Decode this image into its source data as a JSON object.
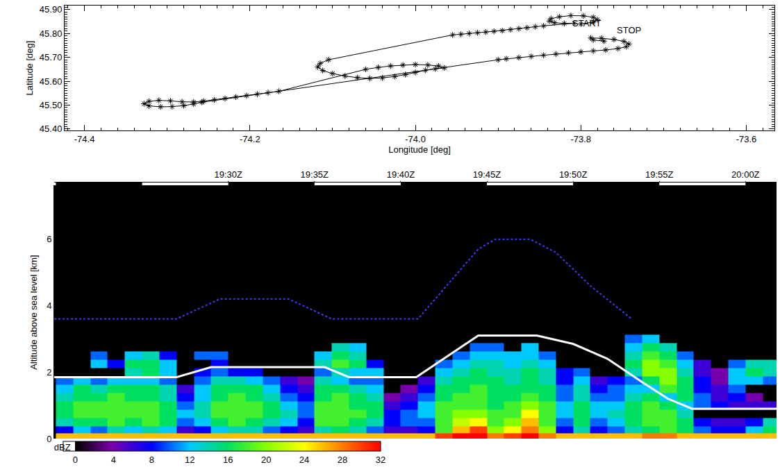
{
  "chart_data": [
    {
      "type": "scatter",
      "x_label": "Longitude [deg]",
      "y_label": "Latitude [deg]",
      "color": "#000000",
      "marker": "asterisk",
      "line_style": "solid",
      "grid": false,
      "xlim": [
        -74.424,
        -73.566
      ],
      "ylim": [
        45.394,
        45.917
      ],
      "xticks": [
        {
          "value": -74.4,
          "label": "-74.4"
        },
        {
          "value": -74.2,
          "label": "-74.2"
        },
        {
          "value": -74.0,
          "label": "-74.0"
        },
        {
          "value": -73.8,
          "label": "-73.8"
        },
        {
          "value": -73.6,
          "label": "-73.6"
        }
      ],
      "yticks": [
        {
          "value": 45.4,
          "label": "45.40"
        },
        {
          "value": 45.5,
          "label": "45.50"
        },
        {
          "value": 45.6,
          "label": "45.60"
        },
        {
          "value": 45.7,
          "label": "45.70"
        },
        {
          "value": 45.8,
          "label": "45.80"
        },
        {
          "value": 45.9,
          "label": "45.90"
        }
      ],
      "x": [
        -73.8,
        -73.785,
        -73.78,
        -73.785,
        -73.797,
        -73.812,
        -73.826,
        -73.836,
        -73.838,
        -73.832,
        -73.82,
        -73.808,
        -73.845,
        -73.855,
        -73.865,
        -73.875,
        -73.885,
        -73.895,
        -73.905,
        -73.915,
        -73.925,
        -73.935,
        -73.945,
        -73.955,
        -74.105,
        -74.115,
        -74.118,
        -74.112,
        -74.1,
        -74.085,
        -74.07,
        -74.055,
        -74.04,
        -74.025,
        -74.012,
        -74.0,
        -73.988,
        -73.976,
        -73.965,
        -73.972,
        -73.985,
        -74.0,
        -74.015,
        -74.03,
        -74.045,
        -74.06,
        -74.165,
        -74.178,
        -74.191,
        -74.204,
        -74.217,
        -74.23,
        -74.243,
        -74.256,
        -74.268,
        -74.282,
        -74.296,
        -74.31,
        -74.322,
        -74.328,
        -74.322,
        -74.308,
        -74.294,
        -74.28,
        -74.268,
        -74.258,
        -73.9,
        -73.89,
        -73.875,
        -73.86,
        -73.845,
        -73.83,
        -73.815,
        -73.8,
        -73.785,
        -73.77,
        -73.755,
        -73.745,
        -73.742,
        -73.748,
        -73.76,
        -73.775,
        -73.788,
        -73.785,
        -73.772
      ],
      "y": [
        45.84,
        45.848,
        45.858,
        45.868,
        45.874,
        45.875,
        45.87,
        45.862,
        45.852,
        45.845,
        45.842,
        45.843,
        45.832,
        45.828,
        45.824,
        45.82,
        45.816,
        45.812,
        45.809,
        45.806,
        45.803,
        45.8,
        45.797,
        45.794,
        45.69,
        45.675,
        45.66,
        45.645,
        45.632,
        45.622,
        45.615,
        45.612,
        45.614,
        45.62,
        45.628,
        45.637,
        45.646,
        45.652,
        45.656,
        45.664,
        45.668,
        45.67,
        45.668,
        45.664,
        45.658,
        45.65,
        45.558,
        45.552,
        45.546,
        45.54,
        45.534,
        45.528,
        45.522,
        45.517,
        45.513,
        45.514,
        45.518,
        45.52,
        45.516,
        45.506,
        45.497,
        45.493,
        45.494,
        45.498,
        45.505,
        45.512,
        45.69,
        45.694,
        45.699,
        45.704,
        45.709,
        45.714,
        45.719,
        45.723,
        45.727,
        45.731,
        45.737,
        45.745,
        45.756,
        45.767,
        45.775,
        45.78,
        45.781,
        45.773,
        45.768
      ],
      "annotations": [
        {
          "text": "START",
          "x": -73.793,
          "y": 45.842
        },
        {
          "text": "STOP",
          "x": -73.742,
          "y": 45.813
        }
      ]
    },
    {
      "type": "heatmap",
      "y_label": "Altitude above sea level [km]",
      "grid": false,
      "xlim": [
        1159.9,
        1201.8
      ],
      "ylim": [
        0,
        7.6
      ],
      "xticks": [
        {
          "value": 1170,
          "label": "19:30Z"
        },
        {
          "value": 1175,
          "label": "19:35Z"
        },
        {
          "value": 1180,
          "label": "19:40Z"
        },
        {
          "value": 1185,
          "label": "19:45Z"
        },
        {
          "value": 1190,
          "label": "19:50Z"
        },
        {
          "value": 1195,
          "label": "19:55Z"
        },
        {
          "value": 1200,
          "label": "20:00Z"
        }
      ],
      "yticks": [
        0,
        2,
        4,
        6
      ],
      "colorbar": {
        "label": "dBZ",
        "range": [
          0,
          32
        ],
        "ticks": [
          0,
          4,
          8,
          12,
          16,
          20,
          24,
          28,
          32
        ]
      },
      "x": [
        1160.5,
        1161.5,
        1162.5,
        1163.5,
        1164.5,
        1165.5,
        1166.5,
        1167.5,
        1168.5,
        1169.5,
        1170.5,
        1171.5,
        1172.5,
        1173.5,
        1174.5,
        1175.5,
        1176.5,
        1177.5,
        1178.5,
        1179.5,
        1180.5,
        1181.5,
        1182.5,
        1183.5,
        1184.5,
        1185.5,
        1186.5,
        1187.5,
        1188.5,
        1189.5,
        1190.5,
        1191.5,
        1192.5,
        1193.5,
        1194.5,
        1195.5,
        1196.5,
        1197.5,
        1198.5,
        1199.5,
        1200.5,
        1201.5
      ],
      "y": [
        0.05,
        0.25,
        0.5,
        0.75,
        1.0,
        1.25,
        1.5,
        1.75,
        2.0,
        2.25,
        2.5,
        2.75,
        3.0
      ],
      "dbz_columns": [
        [
          26,
          8,
          14,
          16,
          16,
          14,
          12,
          10,
          null,
          null,
          null,
          null,
          null
        ],
        [
          26,
          12,
          16,
          18,
          18,
          16,
          16,
          12,
          null,
          null,
          null,
          null,
          null
        ],
        [
          26,
          10,
          16,
          18,
          18,
          16,
          14,
          10,
          null,
          12,
          10,
          null,
          null
        ],
        [
          26,
          14,
          18,
          18,
          18,
          18,
          16,
          12,
          null,
          8,
          null,
          null,
          null
        ],
        [
          26,
          12,
          16,
          18,
          18,
          16,
          16,
          12,
          14,
          16,
          12,
          null,
          null
        ],
        [
          26,
          14,
          18,
          18,
          18,
          16,
          16,
          12,
          16,
          16,
          14,
          null,
          null
        ],
        [
          26,
          12,
          16,
          16,
          16,
          14,
          14,
          10,
          12,
          12,
          8,
          null,
          null
        ],
        [
          26,
          6,
          10,
          12,
          10,
          8,
          6,
          null,
          null,
          null,
          null,
          null,
          null
        ],
        [
          26,
          8,
          12,
          14,
          14,
          12,
          12,
          10,
          8,
          null,
          10,
          null,
          null
        ],
        [
          26,
          12,
          16,
          18,
          18,
          16,
          16,
          14,
          10,
          8,
          10,
          null,
          null
        ],
        [
          26,
          14,
          18,
          18,
          18,
          18,
          16,
          14,
          8,
          null,
          null,
          null,
          null
        ],
        [
          26,
          14,
          16,
          18,
          18,
          16,
          16,
          12,
          8,
          null,
          null,
          null,
          null
        ],
        [
          26,
          10,
          14,
          16,
          16,
          14,
          12,
          10,
          null,
          null,
          null,
          null,
          null
        ],
        [
          26,
          8,
          12,
          14,
          12,
          10,
          8,
          6,
          null,
          null,
          null,
          null,
          null
        ],
        [
          26,
          6,
          8,
          10,
          10,
          8,
          6,
          4,
          null,
          null,
          null,
          null,
          null
        ],
        [
          26,
          14,
          18,
          18,
          18,
          16,
          16,
          14,
          10,
          14,
          12,
          null,
          null
        ],
        [
          26,
          16,
          18,
          18,
          18,
          18,
          16,
          12,
          14,
          18,
          16,
          14,
          null
        ],
        [
          26,
          14,
          16,
          18,
          16,
          16,
          14,
          10,
          12,
          16,
          14,
          12,
          null
        ],
        [
          26,
          10,
          14,
          16,
          16,
          14,
          12,
          10,
          12,
          8,
          null,
          null,
          null
        ],
        [
          26,
          6,
          8,
          8,
          6,
          4,
          null,
          null,
          null,
          null,
          null,
          null,
          null
        ],
        [
          26,
          6,
          10,
          10,
          8,
          6,
          4,
          null,
          null,
          null,
          null,
          null,
          null
        ],
        [
          26,
          8,
          10,
          12,
          12,
          10,
          8,
          6,
          null,
          null,
          null,
          null,
          null
        ],
        [
          30,
          18,
          18,
          18,
          18,
          16,
          16,
          14,
          12,
          10,
          null,
          null,
          null
        ],
        [
          32,
          26,
          22,
          20,
          18,
          18,
          16,
          16,
          14,
          12,
          10,
          null,
          null
        ],
        [
          32,
          30,
          24,
          20,
          18,
          18,
          18,
          16,
          16,
          14,
          12,
          10,
          null
        ],
        [
          28,
          20,
          18,
          18,
          16,
          16,
          16,
          16,
          14,
          14,
          12,
          10,
          null
        ],
        [
          30,
          24,
          20,
          18,
          18,
          16,
          16,
          14,
          14,
          12,
          12,
          null,
          null
        ],
        [
          32,
          28,
          26,
          24,
          20,
          18,
          16,
          16,
          16,
          14,
          12,
          12,
          null
        ],
        [
          28,
          20,
          18,
          18,
          18,
          16,
          16,
          14,
          14,
          12,
          10,
          null,
          null
        ],
        [
          26,
          8,
          10,
          12,
          12,
          10,
          10,
          8,
          8,
          null,
          null,
          null,
          null
        ],
        [
          26,
          14,
          16,
          16,
          16,
          14,
          14,
          12,
          10,
          null,
          null,
          null,
          null
        ],
        [
          26,
          8,
          10,
          12,
          12,
          10,
          8,
          6,
          null,
          null,
          null,
          null,
          null
        ],
        [
          26,
          10,
          12,
          14,
          12,
          10,
          10,
          8,
          null,
          null,
          null,
          null,
          null
        ],
        [
          26,
          14,
          16,
          16,
          16,
          14,
          12,
          10,
          14,
          16,
          14,
          12,
          10
        ],
        [
          28,
          16,
          18,
          18,
          18,
          16,
          12,
          16,
          20,
          20,
          18,
          16,
          12
        ],
        [
          28,
          18,
          18,
          18,
          16,
          12,
          18,
          20,
          20,
          18,
          16,
          14,
          null
        ],
        [
          26,
          16,
          16,
          14,
          12,
          16,
          16,
          16,
          14,
          12,
          10,
          null,
          null
        ],
        [
          26,
          10,
          8,
          null,
          10,
          10,
          8,
          8,
          6,
          6,
          null,
          null,
          null
        ],
        [
          26,
          8,
          6,
          null,
          8,
          6,
          6,
          4,
          4,
          null,
          null,
          null,
          null
        ],
        [
          26,
          8,
          6,
          null,
          6,
          8,
          10,
          12,
          12,
          10,
          null,
          null,
          null
        ],
        [
          26,
          12,
          8,
          null,
          6,
          4,
          null,
          12,
          16,
          14,
          null,
          null,
          null
        ],
        [
          26,
          16,
          14,
          null,
          6,
          null,
          null,
          10,
          14,
          14,
          null,
          null,
          null
        ]
      ],
      "series": [
        {
          "color": "#ffffff",
          "line_style": "solid",
          "x": [
            1159.9,
            1167.0,
            1169.0,
            1175.6,
            1177.0,
            1180.9,
            1184.5,
            1187.9,
            1190.0,
            1192.0,
            1194.0,
            1195.5,
            1196.9,
            1201.8
          ],
          "values": [
            1.85,
            1.85,
            2.15,
            2.15,
            1.85,
            1.85,
            3.1,
            3.1,
            2.85,
            2.4,
            1.7,
            1.2,
            0.9,
            0.9
          ]
        },
        {
          "color": "#3c3cff",
          "line_style": "dotted",
          "x": [
            1159.9,
            1167.0,
            1169.5,
            1173.5,
            1176.0,
            1181.0,
            1182.5,
            1184.5,
            1185.5,
            1187.5,
            1189.0,
            1191.0,
            1193.4
          ],
          "values": [
            3.6,
            3.6,
            4.2,
            4.2,
            3.6,
            3.6,
            4.5,
            5.7,
            6.0,
            6.0,
            5.6,
            4.6,
            3.6
          ]
        }
      ]
    }
  ]
}
